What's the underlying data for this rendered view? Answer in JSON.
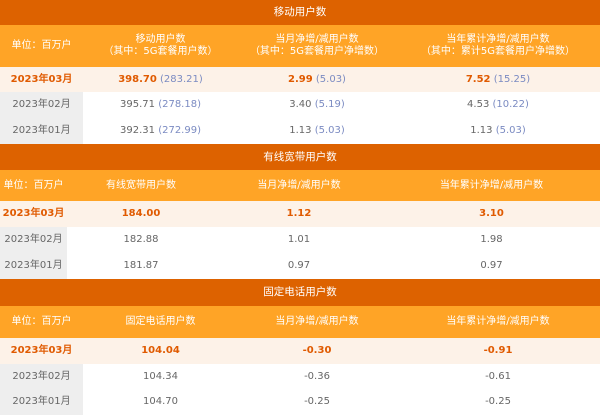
{
  "colors": {
    "title_bar": "#dd6200",
    "header_bar": "#ffa426",
    "highlight_text": "#e05a00",
    "highlight_row": "#fdf2e8",
    "sub_value": "#7b8bc2"
  },
  "sections": [
    {
      "title": "移动用户数",
      "headers": [
        [
          "单位：百万户"
        ],
        [
          "移动用户数",
          "（其中：5G套餐用户数）"
        ],
        [
          "当月净增/减用户数",
          "（其中：5G套餐用户净增数）"
        ],
        [
          "当年累计净增/减用户数",
          "（其中：累计5G套餐用户净增数）"
        ]
      ],
      "rows": [
        {
          "month": "2023年03月",
          "values": [
            [
              "398.70",
              "(283.21)"
            ],
            [
              "2.99",
              "(5.03)"
            ],
            [
              "7.52",
              "(15.25)"
            ]
          ]
        },
        {
          "month": "2023年02月",
          "values": [
            [
              "395.71",
              "(278.18)"
            ],
            [
              "3.40",
              "(5.19)"
            ],
            [
              "4.53",
              "(10.22)"
            ]
          ]
        },
        {
          "month": "2023年01月",
          "values": [
            [
              "392.31",
              "(272.99)"
            ],
            [
              "1.13",
              "(5.03)"
            ],
            [
              "1.13",
              "(5.03)"
            ]
          ]
        }
      ]
    },
    {
      "title": "有线宽带用户数",
      "headers": [
        [
          "单位：百万户"
        ],
        [
          "有线宽带用户数"
        ],
        [
          "当月净增/减用户数"
        ],
        [
          "当年累计净增/减用户数"
        ]
      ],
      "rows": [
        {
          "month": "2023年03月",
          "values": [
            [
              "184.00"
            ],
            [
              "1.12"
            ],
            [
              "3.10"
            ]
          ]
        },
        {
          "month": "2023年02月",
          "values": [
            [
              "182.88"
            ],
            [
              "1.01"
            ],
            [
              "1.98"
            ]
          ]
        },
        {
          "month": "2023年01月",
          "values": [
            [
              "181.87"
            ],
            [
              "0.97"
            ],
            [
              "0.97"
            ]
          ]
        }
      ]
    },
    {
      "title": "固定电话用户数",
      "headers": [
        [
          "单位：百万户"
        ],
        [
          "固定电话用户数"
        ],
        [
          "当月净增/减用户数"
        ],
        [
          "当年累计净增/减用户数"
        ]
      ],
      "rows": [
        {
          "month": "2023年03月",
          "values": [
            [
              "104.04"
            ],
            [
              "-0.30"
            ],
            [
              "-0.91"
            ]
          ]
        },
        {
          "month": "2023年02月",
          "values": [
            [
              "104.34"
            ],
            [
              "-0.36"
            ],
            [
              "-0.61"
            ]
          ]
        },
        {
          "month": "2023年01月",
          "values": [
            [
              "104.70"
            ],
            [
              "-0.25"
            ],
            [
              "-0.25"
            ]
          ]
        }
      ]
    }
  ]
}
